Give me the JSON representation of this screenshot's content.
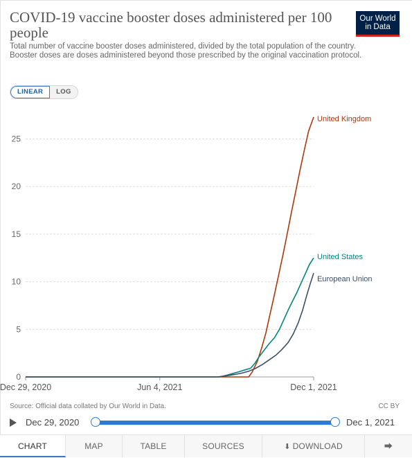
{
  "header": {
    "title": "COVID-19 vaccine booster doses administered per 100 people",
    "subtitle": "Total number of vaccine booster doses administered, divided by the total population of the country. Booster doses are doses administered beyond those prescribed by the original vaccination protocol.",
    "logo_line1": "Our World",
    "logo_line2": "in Data",
    "logo_color": "#002147",
    "logo_accent": "#ce261e"
  },
  "scale_toggle": {
    "linear_label": "LINEAR",
    "log_label": "LOG",
    "selected": "linear"
  },
  "chart_data": {
    "type": "line",
    "title": "COVID-19 vaccine booster doses administered per 100 people",
    "xlabel": "",
    "ylabel": "",
    "x_type": "date",
    "xlim": [
      "2020-12-29",
      "2021-12-01"
    ],
    "ylim": [
      0,
      27.8
    ],
    "y_ticks": [
      0,
      5,
      10,
      15,
      20,
      25
    ],
    "x_ticks": [
      {
        "date": "2020-12-29",
        "label": "Dec 29, 2020"
      },
      {
        "date": "2021-06-04",
        "label": "Jun 4, 2021"
      },
      {
        "date": "2021-12-01",
        "label": "Dec 1, 2021"
      }
    ],
    "grid": "horizontal-dashed",
    "legend": "inline-right",
    "series": [
      {
        "name": "United Kingdom",
        "color": "#b13507",
        "points": [
          [
            "2021-09-16",
            0.0
          ],
          [
            "2021-09-20",
            0.5
          ],
          [
            "2021-09-26",
            1.6
          ],
          [
            "2021-10-01",
            3.0
          ],
          [
            "2021-10-06",
            4.6
          ],
          [
            "2021-10-11",
            6.6
          ],
          [
            "2021-10-16",
            8.6
          ],
          [
            "2021-10-21",
            10.7
          ],
          [
            "2021-10-26",
            12.8
          ],
          [
            "2021-10-31",
            15.0
          ],
          [
            "2021-11-05",
            17.3
          ],
          [
            "2021-11-10",
            19.5
          ],
          [
            "2021-11-15",
            21.7
          ],
          [
            "2021-11-20",
            23.8
          ],
          [
            "2021-11-25",
            25.8
          ],
          [
            "2021-12-01",
            27.3
          ]
        ]
      },
      {
        "name": "United States",
        "color": "#00847e",
        "points": [
          [
            "2021-08-13",
            0.0
          ],
          [
            "2021-08-20",
            0.15
          ],
          [
            "2021-08-28",
            0.35
          ],
          [
            "2021-09-05",
            0.55
          ],
          [
            "2021-09-12",
            0.75
          ],
          [
            "2021-09-18",
            0.9
          ],
          [
            "2021-09-23",
            1.4
          ],
          [
            "2021-09-28",
            2.1
          ],
          [
            "2021-10-04",
            2.8
          ],
          [
            "2021-10-10",
            3.5
          ],
          [
            "2021-10-16",
            4.1
          ],
          [
            "2021-10-22",
            5.0
          ],
          [
            "2021-10-27",
            6.0
          ],
          [
            "2021-11-01",
            7.0
          ],
          [
            "2021-11-06",
            7.9
          ],
          [
            "2021-11-11",
            8.8
          ],
          [
            "2021-11-16",
            9.8
          ],
          [
            "2021-11-21",
            10.8
          ],
          [
            "2021-11-26",
            11.8
          ],
          [
            "2021-12-01",
            12.5
          ]
        ]
      },
      {
        "name": "European Union",
        "color": "#3c4e66",
        "points": [
          [
            "2021-08-10",
            0.0
          ],
          [
            "2021-08-20",
            0.1
          ],
          [
            "2021-08-30",
            0.25
          ],
          [
            "2021-09-08",
            0.4
          ],
          [
            "2021-09-16",
            0.6
          ],
          [
            "2021-09-24",
            0.9
          ],
          [
            "2021-10-02",
            1.3
          ],
          [
            "2021-10-10",
            1.8
          ],
          [
            "2021-10-18",
            2.3
          ],
          [
            "2021-10-25",
            2.9
          ],
          [
            "2021-11-01",
            3.6
          ],
          [
            "2021-11-07",
            4.5
          ],
          [
            "2021-11-13",
            5.7
          ],
          [
            "2021-11-18",
            7.0
          ],
          [
            "2021-11-23",
            8.6
          ],
          [
            "2021-11-27",
            9.8
          ],
          [
            "2021-12-01",
            10.9
          ]
        ]
      }
    ]
  },
  "footer": {
    "source": "Source: Official data collated by Our World in Data.",
    "license": "CC BY"
  },
  "timeline": {
    "start_label": "Dec 29, 2020",
    "end_label": "Dec 1, 2021"
  },
  "tabs": {
    "chart": "CHART",
    "map": "MAP",
    "table": "TABLE",
    "sources": "SOURCES",
    "download": "DOWNLOAD",
    "active": "chart"
  }
}
